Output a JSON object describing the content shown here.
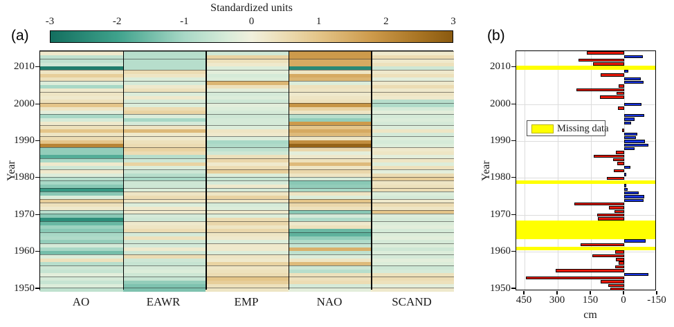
{
  "chart_data": [
    {
      "type": "heatmap",
      "panel": "(a)",
      "title": "Standardized units",
      "ylabel": "Year",
      "columns": [
        "AO",
        "EAWR",
        "EMP",
        "NAO",
        "SCAND"
      ],
      "year_start": 1950,
      "year_end": 2014,
      "year_ticks": [
        1950,
        1960,
        1970,
        1980,
        1990,
        2000,
        2010
      ],
      "colorbar": {
        "min": -3,
        "max": 3,
        "tick_labels": [
          "-3",
          "-2",
          "-1",
          "0",
          "1",
          "2",
          "3"
        ],
        "stops": [
          [
            -3,
            "#136f5f"
          ],
          [
            -2,
            "#3fa28c"
          ],
          [
            -1,
            "#a8d8c6"
          ],
          [
            -0.35,
            "#d9ecd9"
          ],
          [
            0,
            "#f1f0dd"
          ],
          [
            0.35,
            "#eee3c0"
          ],
          [
            1,
            "#e4c589"
          ],
          [
            1.8,
            "#cd9a4b"
          ],
          [
            2.5,
            "#a87423"
          ],
          [
            3,
            "#8a5a10"
          ]
        ]
      },
      "values_by_year": [
        [
          -0.7,
          -1.4,
          0.3,
          -0.2,
          0.2
        ],
        [
          -0.3,
          -1.4,
          0.4,
          -0.4,
          -0.2
        ],
        [
          -0.6,
          -1.2,
          0.8,
          0.5,
          0.4
        ],
        [
          -0.4,
          -0.6,
          1.0,
          0.4,
          0.5
        ],
        [
          -0.2,
          -0.5,
          0.5,
          0.4,
          0.4
        ],
        [
          -0.6,
          -0.3,
          0.4,
          -0.8,
          -0.4
        ],
        [
          -0.5,
          -0.4,
          0.3,
          -0.5,
          -0.5
        ],
        [
          -0.8,
          -0.6,
          0.7,
          1.2,
          -0.3
        ],
        [
          0.4,
          -0.5,
          0.2,
          0.3,
          -0.2
        ],
        [
          -0.3,
          0.5,
          0.3,
          -0.3,
          -0.4
        ],
        [
          -1.5,
          -0.5,
          -0.3,
          -0.7,
          -0.3
        ],
        [
          -1.0,
          0.2,
          0.2,
          1.4,
          -0.5
        ],
        [
          -0.4,
          -0.4,
          0.2,
          -0.6,
          -0.3
        ],
        [
          -1.2,
          -0.5,
          -0.3,
          -0.9,
          -0.4
        ],
        [
          -0.9,
          0.4,
          0.2,
          -1.2,
          -0.2
        ],
        [
          -1.0,
          -0.4,
          0.3,
          -1.7,
          -0.3
        ],
        [
          -1.3,
          0.5,
          0.6,
          -1.6,
          -0.4
        ],
        [
          -1.1,
          0.3,
          0.3,
          0.4,
          -0.2
        ],
        [
          -1.6,
          0.2,
          0.6,
          0.2,
          -0.3
        ],
        [
          -2.4,
          -0.5,
          0.5,
          -0.9,
          -0.4
        ],
        [
          -1.3,
          -0.4,
          -0.3,
          -0.4,
          -0.3
        ],
        [
          -0.8,
          0.2,
          0.2,
          -1.3,
          1.0
        ],
        [
          0.2,
          0.2,
          -0.3,
          0.4,
          0.3
        ],
        [
          0.4,
          -0.3,
          -0.4,
          0.6,
          0.5
        ],
        [
          0.8,
          0.3,
          0.3,
          1.0,
          0.2
        ],
        [
          -0.3,
          0.5,
          0.7,
          -0.3,
          -0.4
        ],
        [
          -1.3,
          0.3,
          0.3,
          0.3,
          -0.3
        ],
        [
          -2.2,
          -0.3,
          -0.4,
          -1.0,
          0.5
        ],
        [
          -1.3,
          -0.5,
          0.2,
          -1.2,
          0.4
        ],
        [
          -1.0,
          -0.5,
          -0.4,
          -1.3,
          0.3
        ],
        [
          -0.8,
          -1.0,
          -0.6,
          -0.4,
          0.8
        ],
        [
          -0.3,
          -0.8,
          -0.3,
          0.3,
          0.5
        ],
        [
          0.2,
          -0.5,
          0.8,
          0.6,
          -0.2
        ],
        [
          -0.5,
          -0.3,
          0.5,
          0.3,
          0.4
        ],
        [
          0.2,
          0.7,
          0.2,
          1.2,
          -0.3
        ],
        [
          -1.0,
          -0.5,
          0.6,
          0.4,
          0.3
        ],
        [
          -1.8,
          -0.8,
          0.4,
          0.2,
          -0.2
        ],
        [
          -1.2,
          0.5,
          -0.5,
          -0.2,
          0.3
        ],
        [
          -1.2,
          0.7,
          -0.7,
          0.6,
          0.2
        ],
        [
          2.2,
          0.5,
          -0.9,
          2.8,
          -0.3
        ],
        [
          1.0,
          0.4,
          -1.0,
          2.0,
          -0.4
        ],
        [
          0.5,
          0.2,
          -0.3,
          0.3,
          -0.3
        ],
        [
          0.3,
          0.2,
          0.2,
          1.2,
          -0.4
        ],
        [
          1.0,
          1.2,
          0.3,
          1.5,
          0.3
        ],
        [
          0.4,
          0.3,
          -0.3,
          1.0,
          -0.3
        ],
        [
          0.2,
          -0.4,
          -0.4,
          1.8,
          -0.4
        ],
        [
          -0.4,
          -1.0,
          -0.4,
          -1.2,
          -0.3
        ],
        [
          -1.0,
          -0.3,
          -0.5,
          -0.8,
          -0.4
        ],
        [
          -0.2,
          0.7,
          -0.4,
          0.3,
          -0.2
        ],
        [
          0.3,
          0.5,
          -0.3,
          0.7,
          -0.4
        ],
        [
          1.0,
          -0.3,
          -0.2,
          1.9,
          -0.9
        ],
        [
          0.4,
          -0.4,
          -0.5,
          0.4,
          -0.8
        ],
        [
          0.2,
          0.2,
          -0.3,
          0.3,
          0.2
        ],
        [
          0.3,
          -0.3,
          -0.4,
          0.2,
          0.3
        ],
        [
          0.2,
          0.4,
          -0.2,
          0.3,
          0.2
        ],
        [
          -1.0,
          0.2,
          0.4,
          0.4,
          0.5
        ],
        [
          -0.3,
          -0.4,
          1.3,
          -0.3,
          0.2
        ],
        [
          0.4,
          -0.3,
          -0.3,
          1.3,
          -0.2
        ],
        [
          0.8,
          0.3,
          -0.4,
          1.5,
          0.4
        ],
        [
          0.3,
          0.5,
          -0.2,
          0.3,
          0.2
        ],
        [
          -2.7,
          -0.8,
          -0.3,
          -2.5,
          -0.5
        ],
        [
          -0.5,
          -0.8,
          0.2,
          1.5,
          0.4
        ],
        [
          -0.7,
          -0.8,
          0.4,
          1.5,
          0.2
        ],
        [
          -0.7,
          -0.8,
          0.7,
          1.8,
          0.5
        ],
        [
          0.2,
          -0.8,
          -0.5,
          1.8,
          0.2
        ]
      ]
    },
    {
      "type": "bar",
      "panel": "(b)",
      "orientation": "horizontal",
      "xlabel": "cm",
      "ylabel": "Year",
      "x_ticks": [
        450,
        300,
        150,
        0,
        -150
      ],
      "x_tick_labels": [
        "450",
        "300",
        "150",
        "0",
        "-150"
      ],
      "x_axis_reversed": true,
      "xlim": [
        487,
        -150
      ],
      "year_start": 1950,
      "year_ticks": [
        1950,
        1960,
        1970,
        1980,
        1990,
        2000,
        2010
      ],
      "values": [
        63,
        73,
        105,
        445,
        -110,
        310,
        40,
        25,
        37,
        145,
        40,
        null,
        196,
        -96,
        null,
        null,
        null,
        null,
        null,
        118,
        123,
        45,
        68,
        225,
        -88,
        -90,
        -65,
        -15,
        -10,
        null,
        78,
        -8,
        48,
        -28,
        30,
        50,
        138,
        38,
        -48,
        -110,
        -95,
        -52,
        -58,
        8,
        0,
        -31,
        -47,
        -90,
        0,
        29,
        -78,
        0,
        110,
        35,
        215,
        24,
        -88,
        -75,
        105,
        -18,
        null,
        140,
        205,
        -85,
        170
      ],
      "missing_years": [
        1961,
        1964,
        1965,
        1966,
        1967,
        1968,
        1979,
        2010
      ],
      "legend": {
        "label": "Missing data",
        "swatch_color": "#ffff00"
      },
      "colors": {
        "positive_bar": "#e8190b",
        "negative_bar": "#1a35e0",
        "missing_band": "#ffff00",
        "grid": "#dcdcdc"
      }
    }
  ]
}
